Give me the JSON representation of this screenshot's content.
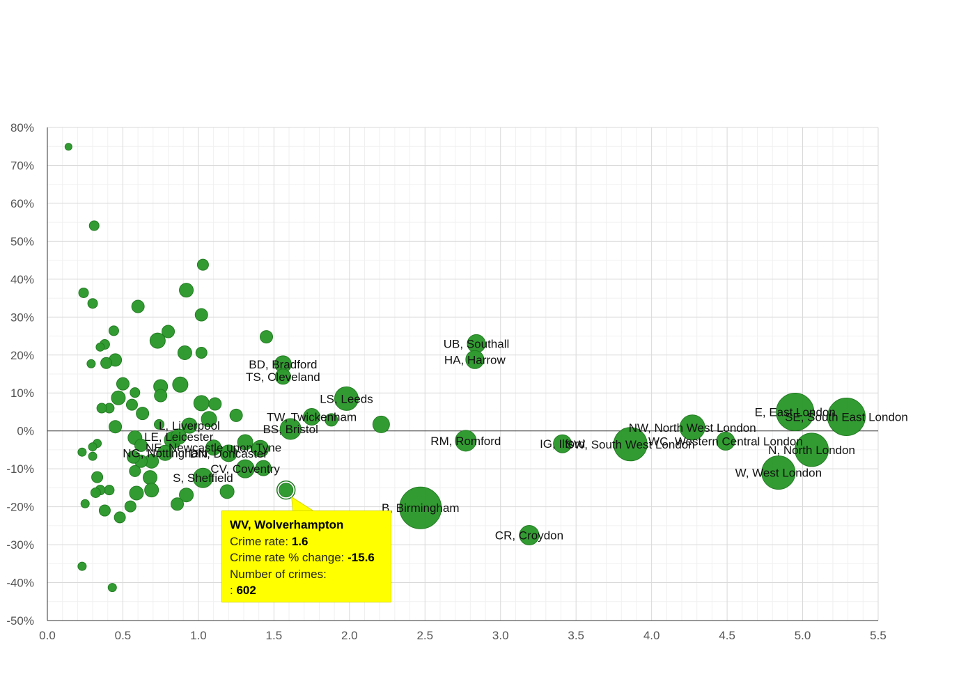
{
  "chart_data": {
    "type": "scatter",
    "subtype": "bubble",
    "xlim": [
      0,
      5.5
    ],
    "ylim": [
      -50,
      80
    ],
    "x_ticks": [
      "0.0",
      "0.5",
      "1.0",
      "1.5",
      "2.0",
      "2.5",
      "3.0",
      "3.5",
      "4.0",
      "4.5",
      "5.0",
      "5.5"
    ],
    "y_ticks": [
      "-50%",
      "-40%",
      "-30%",
      "-20%",
      "-10%",
      "0%",
      "10%",
      "20%",
      "30%",
      "40%",
      "50%",
      "60%",
      "70%",
      "80%"
    ],
    "grid": true,
    "colors": {
      "bubble": "#2e9a2e",
      "bubble_stroke": "#1f7a1f",
      "tooltip_bg": "#ffff00"
    },
    "points": [
      {
        "x": 5.29,
        "y": 3.7,
        "r": 27,
        "label": "SE, South East London"
      },
      {
        "x": 4.95,
        "y": 5.0,
        "r": 27,
        "label": "E, East London"
      },
      {
        "x": 5.06,
        "y": -5.0,
        "r": 24,
        "label": "N, North London"
      },
      {
        "x": 4.84,
        "y": -11.0,
        "r": 24,
        "label": "W, West London"
      },
      {
        "x": 4.49,
        "y": -2.7,
        "r": 13,
        "label": "WC, Western Central London"
      },
      {
        "x": 4.27,
        "y": 0.9,
        "r": 18,
        "label": "NW, North West London"
      },
      {
        "x": 3.86,
        "y": -3.5,
        "r": 24,
        "label": "SW, South West London"
      },
      {
        "x": 3.41,
        "y": -3.4,
        "r": 13,
        "label": "IG, Ilford"
      },
      {
        "x": 3.19,
        "y": -27.5,
        "r": 14,
        "label": "CR, Croydon"
      },
      {
        "x": 2.84,
        "y": 23.0,
        "r": 13,
        "label": "UB, Southall"
      },
      {
        "x": 2.83,
        "y": 18.8,
        "r": 13,
        "label": "HA, Harrow"
      },
      {
        "x": 2.77,
        "y": -2.6,
        "r": 15,
        "label": "RM, Romford"
      },
      {
        "x": 2.47,
        "y": -20.3,
        "r": 30,
        "label": "B, Birmingham"
      },
      {
        "x": 2.21,
        "y": 1.7,
        "r": 12,
        "label": ""
      },
      {
        "x": 1.98,
        "y": 8.5,
        "r": 17,
        "label": "LS, Leeds"
      },
      {
        "x": 1.88,
        "y": 2.9,
        "r": 9,
        "label": ""
      },
      {
        "x": 1.75,
        "y": 3.7,
        "r": 12,
        "label": "TW, Twickenham"
      },
      {
        "x": 1.61,
        "y": 0.5,
        "r": 15,
        "label": "BS, Bristol"
      },
      {
        "x": 1.56,
        "y": 17.6,
        "r": 12,
        "label": "BD, Bradford"
      },
      {
        "x": 1.56,
        "y": 14.3,
        "r": 11,
        "label": "TS, Cleveland"
      },
      {
        "x": 1.58,
        "y": -15.6,
        "r": 10,
        "label": "WV, Wolverhampton"
      },
      {
        "x": 1.45,
        "y": 24.8,
        "r": 9,
        "label": ""
      },
      {
        "x": 1.41,
        "y": -4.7,
        "r": 12,
        "label": ""
      },
      {
        "x": 1.43,
        "y": -9.8,
        "r": 11,
        "label": ""
      },
      {
        "x": 1.31,
        "y": -10.0,
        "r": 13,
        "label": "CV, Coventry"
      },
      {
        "x": 1.31,
        "y": -3.0,
        "r": 11,
        "label": ""
      },
      {
        "x": 1.25,
        "y": 4.1,
        "r": 9,
        "label": ""
      },
      {
        "x": 1.2,
        "y": -5.9,
        "r": 12,
        "label": "DN, Doncaster"
      },
      {
        "x": 1.19,
        "y": -16.0,
        "r": 10,
        "label": ""
      },
      {
        "x": 1.11,
        "y": 7.1,
        "r": 9,
        "label": ""
      },
      {
        "x": 1.1,
        "y": -4.4,
        "r": 11,
        "label": "NE, Newcastle upon Tyne"
      },
      {
        "x": 1.07,
        "y": 3.1,
        "r": 11,
        "label": ""
      },
      {
        "x": 1.03,
        "y": 43.8,
        "r": 8,
        "label": ""
      },
      {
        "x": 1.02,
        "y": 30.6,
        "r": 9,
        "label": ""
      },
      {
        "x": 1.02,
        "y": 20.6,
        "r": 8,
        "label": ""
      },
      {
        "x": 1.02,
        "y": 7.3,
        "r": 11,
        "label": ""
      },
      {
        "x": 1.03,
        "y": -12.4,
        "r": 14,
        "label": "S, Sheffield"
      },
      {
        "x": 0.94,
        "y": 1.4,
        "r": 11,
        "label": "L, Liverpool"
      },
      {
        "x": 0.92,
        "y": 37.1,
        "r": 10,
        "label": ""
      },
      {
        "x": 0.91,
        "y": 20.6,
        "r": 10,
        "label": ""
      },
      {
        "x": 0.92,
        "y": -16.9,
        "r": 10,
        "label": ""
      },
      {
        "x": 0.88,
        "y": 12.2,
        "r": 11,
        "label": ""
      },
      {
        "x": 0.87,
        "y": -1.5,
        "r": 11,
        "label": "LE, Leicester"
      },
      {
        "x": 0.86,
        "y": -19.3,
        "r": 9,
        "label": ""
      },
      {
        "x": 0.83,
        "y": -2.4,
        "r": 12,
        "label": ""
      },
      {
        "x": 0.8,
        "y": 26.2,
        "r": 9,
        "label": ""
      },
      {
        "x": 0.78,
        "y": -5.8,
        "r": 11,
        "label": "NG, Nottingham"
      },
      {
        "x": 0.75,
        "y": 11.7,
        "r": 10,
        "label": ""
      },
      {
        "x": 0.75,
        "y": 9.3,
        "r": 9,
        "label": ""
      },
      {
        "x": 0.74,
        "y": 1.7,
        "r": 7,
        "label": ""
      },
      {
        "x": 0.73,
        "y": 23.8,
        "r": 11,
        "label": ""
      },
      {
        "x": 0.69,
        "y": -8.0,
        "r": 10,
        "label": ""
      },
      {
        "x": 0.68,
        "y": -12.3,
        "r": 10,
        "label": ""
      },
      {
        "x": 0.69,
        "y": -15.6,
        "r": 10,
        "label": ""
      },
      {
        "x": 0.63,
        "y": 4.6,
        "r": 9,
        "label": ""
      },
      {
        "x": 0.62,
        "y": -3.8,
        "r": 9,
        "label": ""
      },
      {
        "x": 0.62,
        "y": -8.0,
        "r": 9,
        "label": ""
      },
      {
        "x": 0.6,
        "y": 32.8,
        "r": 9,
        "label": ""
      },
      {
        "x": 0.59,
        "y": -16.4,
        "r": 10,
        "label": ""
      },
      {
        "x": 0.58,
        "y": -1.8,
        "r": 10,
        "label": ""
      },
      {
        "x": 0.57,
        "y": -6.9,
        "r": 9,
        "label": ""
      },
      {
        "x": 0.58,
        "y": -10.6,
        "r": 8,
        "label": ""
      },
      {
        "x": 0.58,
        "y": 10.1,
        "r": 7,
        "label": ""
      },
      {
        "x": 0.56,
        "y": 6.9,
        "r": 8,
        "label": ""
      },
      {
        "x": 0.55,
        "y": -19.9,
        "r": 8,
        "label": ""
      },
      {
        "x": 0.5,
        "y": 12.4,
        "r": 9,
        "label": ""
      },
      {
        "x": 0.47,
        "y": 8.7,
        "r": 10,
        "label": ""
      },
      {
        "x": 0.48,
        "y": -22.8,
        "r": 8,
        "label": ""
      },
      {
        "x": 0.45,
        "y": 18.7,
        "r": 9,
        "label": ""
      },
      {
        "x": 0.45,
        "y": 1.1,
        "r": 9,
        "label": ""
      },
      {
        "x": 0.44,
        "y": 26.4,
        "r": 7,
        "label": ""
      },
      {
        "x": 0.43,
        "y": -41.3,
        "r": 6,
        "label": ""
      },
      {
        "x": 0.41,
        "y": -15.6,
        "r": 7,
        "label": ""
      },
      {
        "x": 0.41,
        "y": 6.0,
        "r": 7,
        "label": ""
      },
      {
        "x": 0.39,
        "y": 17.9,
        "r": 8,
        "label": ""
      },
      {
        "x": 0.38,
        "y": 22.8,
        "r": 7,
        "label": ""
      },
      {
        "x": 0.38,
        "y": -21.0,
        "r": 8,
        "label": ""
      },
      {
        "x": 0.36,
        "y": 6.0,
        "r": 7,
        "label": ""
      },
      {
        "x": 0.35,
        "y": 22.1,
        "r": 6,
        "label": ""
      },
      {
        "x": 0.35,
        "y": -15.6,
        "r": 7,
        "label": ""
      },
      {
        "x": 0.33,
        "y": -12.2,
        "r": 8,
        "label": ""
      },
      {
        "x": 0.32,
        "y": -16.3,
        "r": 7,
        "label": ""
      },
      {
        "x": 0.33,
        "y": -3.3,
        "r": 6,
        "label": ""
      },
      {
        "x": 0.3,
        "y": 33.6,
        "r": 7,
        "label": ""
      },
      {
        "x": 0.31,
        "y": 54.1,
        "r": 7,
        "label": ""
      },
      {
        "x": 0.29,
        "y": 17.7,
        "r": 6,
        "label": ""
      },
      {
        "x": 0.3,
        "y": -4.2,
        "r": 6,
        "label": ""
      },
      {
        "x": 0.3,
        "y": -6.7,
        "r": 6,
        "label": ""
      },
      {
        "x": 0.24,
        "y": 36.4,
        "r": 7,
        "label": ""
      },
      {
        "x": 0.25,
        "y": -19.2,
        "r": 6,
        "label": ""
      },
      {
        "x": 0.23,
        "y": -5.6,
        "r": 6,
        "label": ""
      },
      {
        "x": 0.23,
        "y": -35.7,
        "r": 6,
        "label": ""
      },
      {
        "x": 0.14,
        "y": 74.9,
        "r": 5,
        "label": ""
      }
    ]
  },
  "tooltip": {
    "title": "WV, Wolverhampton",
    "crime_rate_label": "Crime rate:",
    "crime_rate_value": "1.6",
    "change_label": "Crime rate % change:",
    "change_value": "-15.6",
    "count_label": "Number of crimes:",
    "count_prefix": ":",
    "count_value": "602"
  }
}
